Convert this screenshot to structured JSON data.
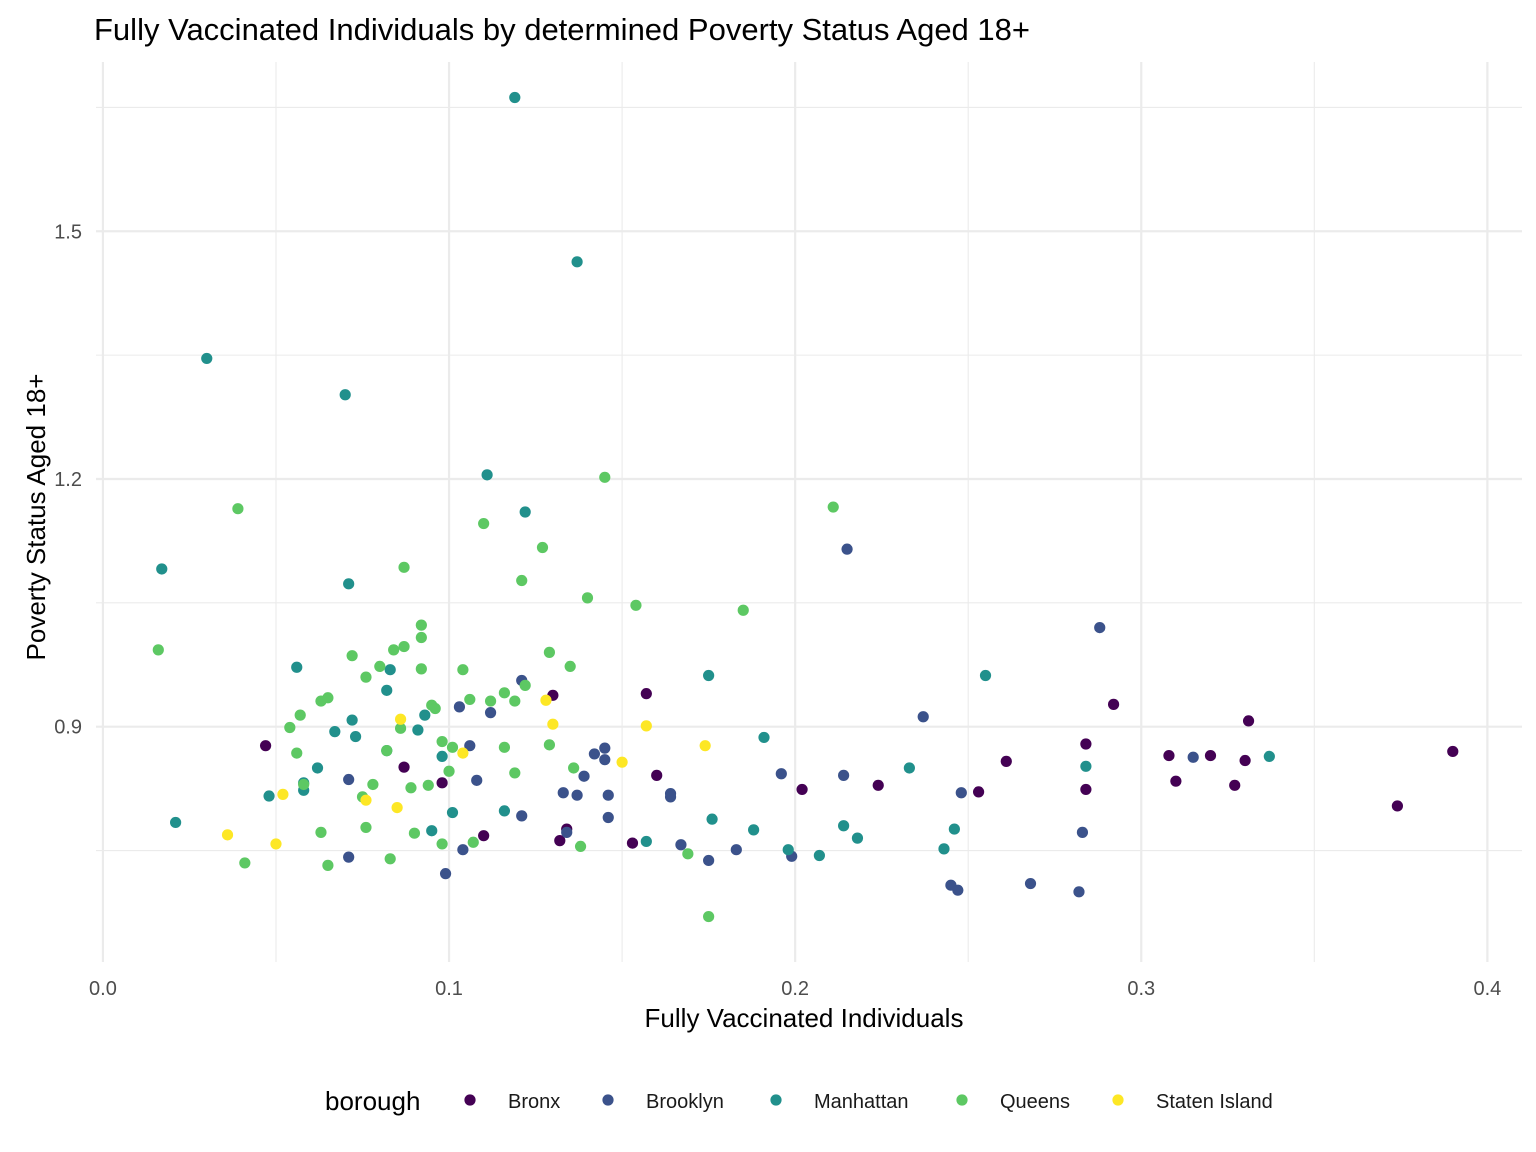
{
  "chart_data": {
    "type": "scatter",
    "title": "Fully Vaccinated Individuals by determined Poverty Status Aged 18+",
    "xlabel": "Fully Vaccinated Individuals",
    "ylabel": "Poverty Status Aged 18+",
    "xlim": [
      -0.002,
      0.41
    ],
    "ylim": [
      0.615,
      1.705
    ],
    "x_ticks": [
      0.0,
      0.1,
      0.2,
      0.3,
      0.4
    ],
    "x_tick_labels": [
      "0.0",
      "0.1",
      "0.2",
      "0.3",
      "0.4"
    ],
    "y_ticks": [
      0.9,
      1.2,
      1.5
    ],
    "y_tick_labels": [
      "0.9",
      "1.2",
      "1.5"
    ],
    "grid": true,
    "legend": {
      "title": "borough",
      "placement": "bottom"
    },
    "series": [
      {
        "name": "Bronx",
        "color": "#440154",
        "points": [
          [
            0.047,
            0.877
          ],
          [
            0.087,
            0.851
          ],
          [
            0.098,
            0.832
          ],
          [
            0.11,
            0.768
          ],
          [
            0.13,
            0.938
          ],
          [
            0.132,
            0.762
          ],
          [
            0.134,
            0.776
          ],
          [
            0.153,
            0.759
          ],
          [
            0.157,
            0.94
          ],
          [
            0.16,
            0.841
          ],
          [
            0.202,
            0.824
          ],
          [
            0.224,
            0.829
          ],
          [
            0.253,
            0.821
          ],
          [
            0.261,
            0.858
          ],
          [
            0.284,
            0.879
          ],
          [
            0.284,
            0.824
          ],
          [
            0.292,
            0.927
          ],
          [
            0.308,
            0.865
          ],
          [
            0.31,
            0.834
          ],
          [
            0.32,
            0.865
          ],
          [
            0.327,
            0.829
          ],
          [
            0.33,
            0.859
          ],
          [
            0.331,
            0.907
          ],
          [
            0.374,
            0.804
          ],
          [
            0.39,
            0.87
          ]
        ]
      },
      {
        "name": "Brooklyn",
        "color": "#3b528b",
        "points": [
          [
            0.071,
            0.836
          ],
          [
            0.071,
            0.742
          ],
          [
            0.099,
            0.722
          ],
          [
            0.103,
            0.924
          ],
          [
            0.104,
            0.751
          ],
          [
            0.106,
            0.877
          ],
          [
            0.108,
            0.835
          ],
          [
            0.112,
            0.917
          ],
          [
            0.121,
            0.956
          ],
          [
            0.121,
            0.792
          ],
          [
            0.133,
            0.82
          ],
          [
            0.134,
            0.772
          ],
          [
            0.137,
            0.817
          ],
          [
            0.139,
            0.84
          ],
          [
            0.142,
            0.867
          ],
          [
            0.145,
            0.874
          ],
          [
            0.145,
            0.86
          ],
          [
            0.146,
            0.817
          ],
          [
            0.146,
            0.79
          ],
          [
            0.164,
            0.815
          ],
          [
            0.164,
            0.819
          ],
          [
            0.167,
            0.757
          ],
          [
            0.175,
            0.738
          ],
          [
            0.183,
            0.751
          ],
          [
            0.196,
            0.843
          ],
          [
            0.199,
            0.743
          ],
          [
            0.214,
            0.841
          ],
          [
            0.215,
            1.115
          ],
          [
            0.237,
            0.912
          ],
          [
            0.245,
            0.708
          ],
          [
            0.247,
            0.702
          ],
          [
            0.248,
            0.82
          ],
          [
            0.268,
            0.71
          ],
          [
            0.282,
            0.7
          ],
          [
            0.283,
            0.772
          ],
          [
            0.288,
            1.02
          ],
          [
            0.315,
            0.863
          ]
        ]
      },
      {
        "name": "Manhattan",
        "color": "#21908c",
        "points": [
          [
            0.017,
            1.091
          ],
          [
            0.021,
            0.784
          ],
          [
            0.03,
            1.346
          ],
          [
            0.048,
            0.816
          ],
          [
            0.056,
            0.972
          ],
          [
            0.058,
            0.823
          ],
          [
            0.058,
            0.832
          ],
          [
            0.062,
            0.85
          ],
          [
            0.067,
            0.894
          ],
          [
            0.07,
            1.302
          ],
          [
            0.071,
            1.073
          ],
          [
            0.072,
            0.908
          ],
          [
            0.073,
            0.888
          ],
          [
            0.082,
            0.944
          ],
          [
            0.082,
            0.871
          ],
          [
            0.083,
            0.969
          ],
          [
            0.091,
            0.896
          ],
          [
            0.093,
            0.914
          ],
          [
            0.095,
            0.774
          ],
          [
            0.098,
            0.864
          ],
          [
            0.101,
            0.796
          ],
          [
            0.111,
            1.205
          ],
          [
            0.116,
            0.798
          ],
          [
            0.119,
            1.662
          ],
          [
            0.122,
            1.16
          ],
          [
            0.137,
            1.463
          ],
          [
            0.157,
            0.761
          ],
          [
            0.175,
            0.962
          ],
          [
            0.176,
            0.788
          ],
          [
            0.188,
            0.775
          ],
          [
            0.191,
            0.887
          ],
          [
            0.198,
            0.751
          ],
          [
            0.207,
            0.744
          ],
          [
            0.214,
            0.78
          ],
          [
            0.218,
            0.765
          ],
          [
            0.233,
            0.85
          ],
          [
            0.243,
            0.752
          ],
          [
            0.246,
            0.776
          ],
          [
            0.255,
            0.962
          ],
          [
            0.284,
            0.852
          ],
          [
            0.337,
            0.864
          ]
        ]
      },
      {
        "name": "Queens",
        "color": "#5dc863",
        "points": [
          [
            0.016,
            0.993
          ],
          [
            0.039,
            1.164
          ],
          [
            0.041,
            0.735
          ],
          [
            0.054,
            0.899
          ],
          [
            0.056,
            0.868
          ],
          [
            0.057,
            0.914
          ],
          [
            0.058,
            0.83
          ],
          [
            0.063,
            0.931
          ],
          [
            0.063,
            0.772
          ],
          [
            0.065,
            0.935
          ],
          [
            0.065,
            0.732
          ],
          [
            0.072,
            0.986
          ],
          [
            0.075,
            0.815
          ],
          [
            0.076,
            0.96
          ],
          [
            0.076,
            0.778
          ],
          [
            0.078,
            0.83
          ],
          [
            0.08,
            0.973
          ],
          [
            0.082,
            0.871
          ],
          [
            0.083,
            0.74
          ],
          [
            0.084,
            0.993
          ],
          [
            0.086,
            0.898
          ],
          [
            0.087,
            0.997
          ],
          [
            0.087,
            1.093
          ],
          [
            0.089,
            0.826
          ],
          [
            0.09,
            0.771
          ],
          [
            0.092,
            1.023
          ],
          [
            0.092,
            1.008
          ],
          [
            0.092,
            0.97
          ],
          [
            0.094,
            0.829
          ],
          [
            0.095,
            0.926
          ],
          [
            0.096,
            0.922
          ],
          [
            0.098,
            0.882
          ],
          [
            0.098,
            0.758
          ],
          [
            0.1,
            0.846
          ],
          [
            0.101,
            0.875
          ],
          [
            0.104,
            0.969
          ],
          [
            0.106,
            0.933
          ],
          [
            0.107,
            0.76
          ],
          [
            0.11,
            1.146
          ],
          [
            0.112,
            0.931
          ],
          [
            0.116,
            0.941
          ],
          [
            0.116,
            0.875
          ],
          [
            0.119,
            0.844
          ],
          [
            0.119,
            0.931
          ],
          [
            0.121,
            1.077
          ],
          [
            0.122,
            0.95
          ],
          [
            0.127,
            1.117
          ],
          [
            0.129,
            0.99
          ],
          [
            0.129,
            0.878
          ],
          [
            0.135,
            0.973
          ],
          [
            0.136,
            0.85
          ],
          [
            0.138,
            0.755
          ],
          [
            0.14,
            1.056
          ],
          [
            0.145,
            1.202
          ],
          [
            0.154,
            1.047
          ],
          [
            0.169,
            0.746
          ],
          [
            0.175,
            0.67
          ],
          [
            0.185,
            1.041
          ],
          [
            0.211,
            1.166
          ]
        ]
      },
      {
        "name": "Staten Island",
        "color": "#fde725",
        "points": [
          [
            0.036,
            0.769
          ],
          [
            0.05,
            0.758
          ],
          [
            0.052,
            0.818
          ],
          [
            0.076,
            0.811
          ],
          [
            0.085,
            0.802
          ],
          [
            0.086,
            0.909
          ],
          [
            0.104,
            0.868
          ],
          [
            0.128,
            0.932
          ],
          [
            0.13,
            0.903
          ],
          [
            0.15,
            0.857
          ],
          [
            0.157,
            0.901
          ],
          [
            0.174,
            0.877
          ]
        ]
      }
    ]
  }
}
